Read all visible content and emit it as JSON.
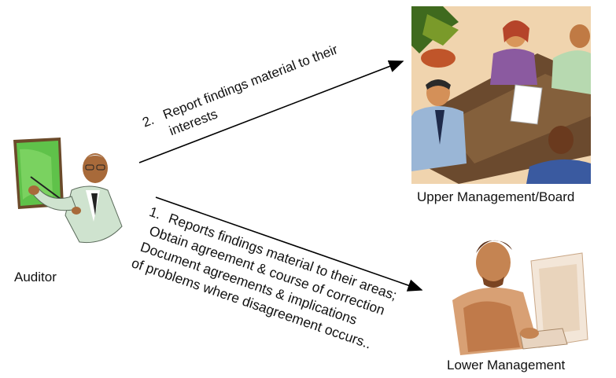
{
  "actors": {
    "auditor": "Auditor",
    "upper": "Upper Management/Board",
    "lower": "Lower Management"
  },
  "flows": {
    "to_upper": {
      "number": "2.",
      "lines": [
        "Report findings material to their",
        "interests"
      ]
    },
    "to_lower": {
      "number": "1.",
      "lines": [
        "Reports findings material to their areas;",
        "Obtain agreement & course of correction",
        "Document agreements & implications",
        "of problems where disagreement occurs.."
      ]
    }
  },
  "icons": {
    "auditor_figure": "presenter-clipart-icon",
    "upper_figure": "meeting-clipart-icon",
    "lower_figure": "computer-worker-clipart-icon"
  }
}
